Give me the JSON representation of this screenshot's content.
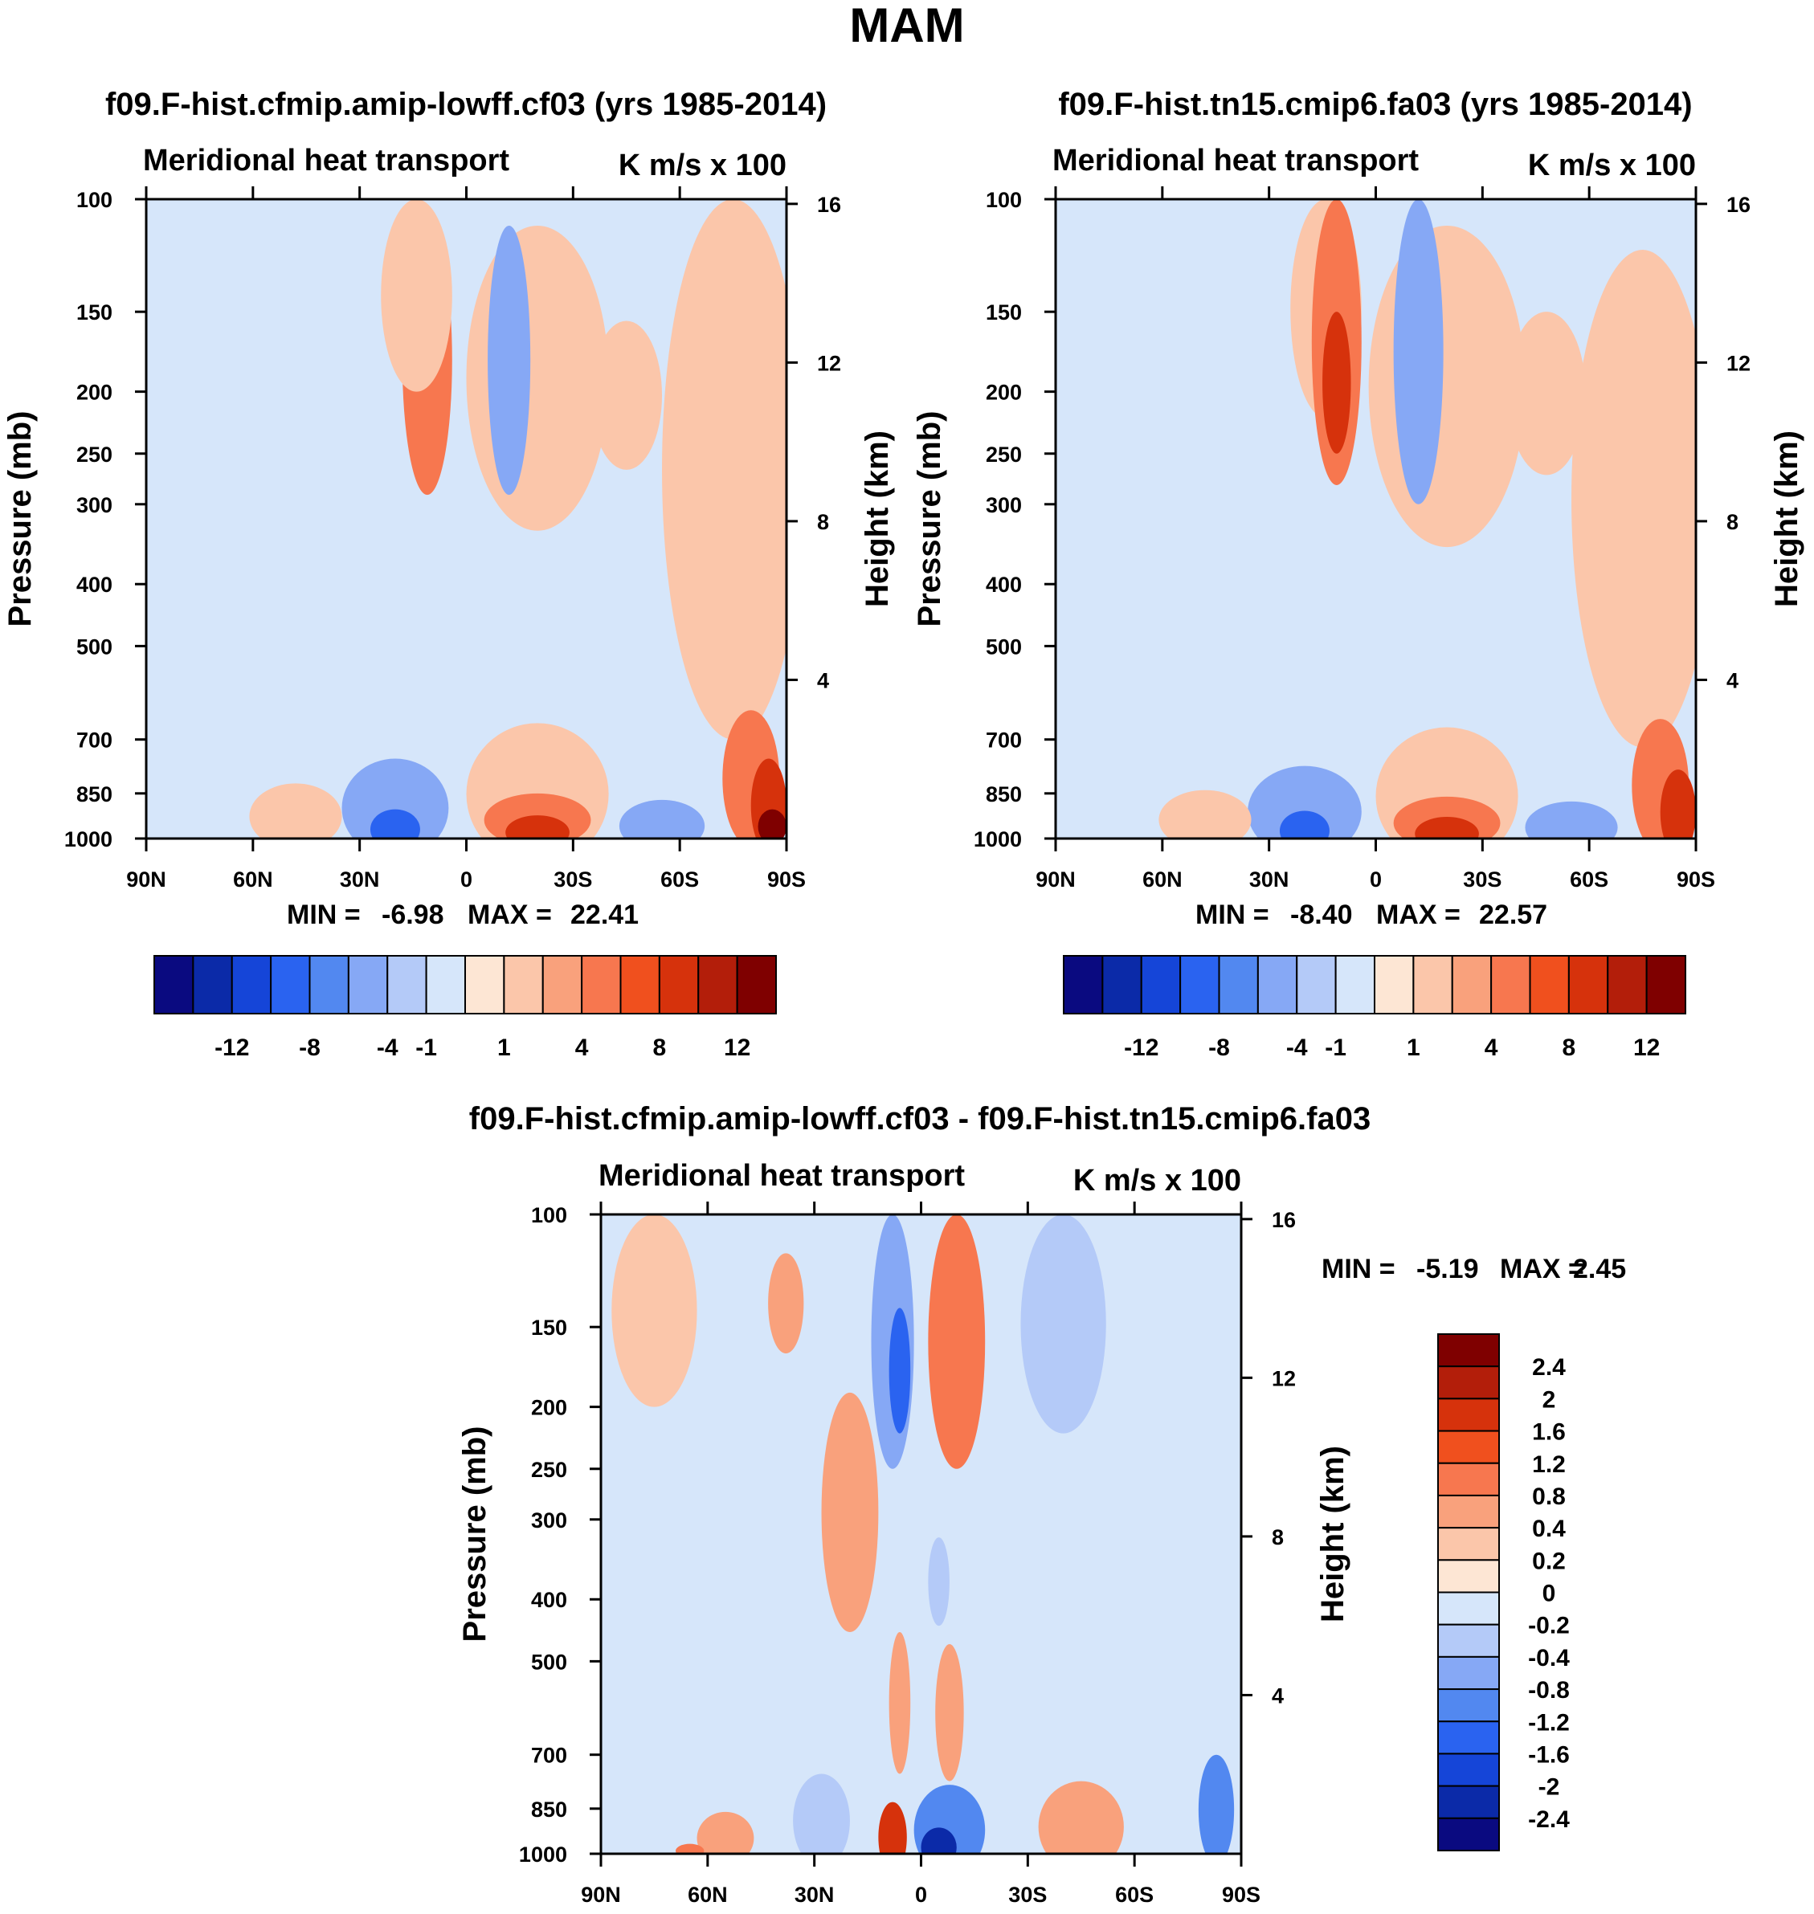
{
  "figure_title": "MAM",
  "chart_data": [
    {
      "type": "heatmap",
      "title": "f09.F-hist.cfmip.amip-lowff.cf03 (yrs 1985-2014)",
      "subtitle_left": "Meridional heat transport",
      "subtitle_right": "K m/s x 100",
      "ylabel": "Pressure (mb)",
      "ylabel_right": "Height (km)",
      "x_ticks": [
        "90N",
        "60N",
        "30N",
        "0",
        "30S",
        "60S",
        "90S"
      ],
      "y_ticks": [
        "100",
        "150",
        "200",
        "250",
        "300",
        "400",
        "500",
        "700",
        "850",
        "1000"
      ],
      "y_right_ticks": [
        "16",
        "12",
        "8",
        "4"
      ],
      "stats": {
        "min_label": "MIN =",
        "min": "-6.98",
        "max_label": "MAX =",
        "max": "22.41"
      },
      "features": [
        {
          "lat": 14,
          "p": 140,
          "rx": 10,
          "ry": 60,
          "v": 1
        },
        {
          "lat": -20,
          "p": 220,
          "rx": 20,
          "ry": 110,
          "v": 1
        },
        {
          "lat": 33,
          "p": 200,
          "rx": 5,
          "ry": 25,
          "v": -1
        },
        {
          "lat": 11,
          "p": 200,
          "rx": 7,
          "ry": 90,
          "v": 4
        },
        {
          "lat": -12,
          "p": 200,
          "rx": 6,
          "ry": 90,
          "v": -4
        },
        {
          "lat": -45,
          "p": 210,
          "rx": 10,
          "ry": 55,
          "v": 1
        },
        {
          "lat": -75,
          "p": 400,
          "rx": 20,
          "ry": 300,
          "v": 1
        },
        {
          "lat": 48,
          "p": 930,
          "rx": 13,
          "ry": 110,
          "v": 1
        },
        {
          "lat": 20,
          "p": 910,
          "rx": 15,
          "ry": 160,
          "v": -4
        },
        {
          "lat": 20,
          "p": 970,
          "rx": 7,
          "ry": 70,
          "v": -8
        },
        {
          "lat": -20,
          "p": 880,
          "rx": 20,
          "ry": 220,
          "v": 1
        },
        {
          "lat": -20,
          "p": 940,
          "rx": 15,
          "ry": 90,
          "v": 4
        },
        {
          "lat": -20,
          "p": 980,
          "rx": 9,
          "ry": 60,
          "v": 8
        },
        {
          "lat": -55,
          "p": 960,
          "rx": 12,
          "ry": 90,
          "v": -4
        },
        {
          "lat": -80,
          "p": 830,
          "rx": 8,
          "ry": 200,
          "v": 4
        },
        {
          "lat": -85,
          "p": 900,
          "rx": 5,
          "ry": 150,
          "v": 8
        },
        {
          "lat": -86,
          "p": 960,
          "rx": 4,
          "ry": 60,
          "v": 12
        }
      ]
    },
    {
      "type": "heatmap",
      "title": "f09.F-hist.tn15.cmip6.fa03 (yrs 1985-2014)",
      "subtitle_left": "Meridional heat transport",
      "subtitle_right": "K m/s x 100",
      "ylabel": "Pressure (mb)",
      "ylabel_right": "Height (km)",
      "x_ticks": [
        "90N",
        "60N",
        "30N",
        "0",
        "30S",
        "60S",
        "90S"
      ],
      "y_ticks": [
        "100",
        "150",
        "200",
        "250",
        "300",
        "400",
        "500",
        "700",
        "850",
        "1000"
      ],
      "y_right_ticks": [
        "16",
        "12",
        "8",
        "4"
      ],
      "stats": {
        "min_label": "MIN =",
        "min": "-8.40",
        "max_label": "MAX =",
        "max": "22.57"
      },
      "features": [
        {
          "lat": 14,
          "p": 150,
          "rx": 10,
          "ry": 70,
          "v": 1
        },
        {
          "lat": -20,
          "p": 230,
          "rx": 22,
          "ry": 120,
          "v": 1
        },
        {
          "lat": 35,
          "p": 200,
          "rx": 4,
          "ry": 25,
          "v": -1
        },
        {
          "lat": 11,
          "p": 190,
          "rx": 7,
          "ry": 90,
          "v": 4
        },
        {
          "lat": 11,
          "p": 200,
          "rx": 4,
          "ry": 50,
          "v": 8
        },
        {
          "lat": -12,
          "p": 200,
          "rx": 7,
          "ry": 100,
          "v": -4
        },
        {
          "lat": -48,
          "p": 210,
          "rx": 11,
          "ry": 60,
          "v": 1
        },
        {
          "lat": -75,
          "p": 420,
          "rx": 20,
          "ry": 300,
          "v": 1
        },
        {
          "lat": 48,
          "p": 940,
          "rx": 13,
          "ry": 100,
          "v": 1
        },
        {
          "lat": 20,
          "p": 920,
          "rx": 16,
          "ry": 150,
          "v": -4
        },
        {
          "lat": 20,
          "p": 975,
          "rx": 7,
          "ry": 70,
          "v": -8
        },
        {
          "lat": -20,
          "p": 890,
          "rx": 20,
          "ry": 220,
          "v": 1
        },
        {
          "lat": -20,
          "p": 950,
          "rx": 15,
          "ry": 90,
          "v": 4
        },
        {
          "lat": -20,
          "p": 985,
          "rx": 9,
          "ry": 60,
          "v": 8
        },
        {
          "lat": -55,
          "p": 965,
          "rx": 13,
          "ry": 90,
          "v": -4
        },
        {
          "lat": -80,
          "p": 850,
          "rx": 8,
          "ry": 200,
          "v": 4
        },
        {
          "lat": -85,
          "p": 920,
          "rx": 5,
          "ry": 140,
          "v": 8
        }
      ]
    },
    {
      "type": "heatmap",
      "title": "f09.F-hist.cfmip.amip-lowff.cf03 - f09.F-hist.tn15.cmip6.fa03",
      "subtitle_left": "Meridional heat transport",
      "subtitle_right": "K m/s x 100",
      "ylabel": "Pressure (mb)",
      "ylabel_right": "Height (km)",
      "x_ticks": [
        "90N",
        "60N",
        "30N",
        "0",
        "30S",
        "60S",
        "90S"
      ],
      "y_ticks": [
        "100",
        "150",
        "200",
        "250",
        "300",
        "400",
        "500",
        "700",
        "850",
        "1000"
      ],
      "y_right_ticks": [
        "16",
        "12",
        "8",
        "4"
      ],
      "stats": {
        "min_label": "MIN =",
        "min": "-5.19",
        "max_label": "MAX =",
        "max": "2.45"
      },
      "features": [
        {
          "lat": 75,
          "p": 150,
          "rx": 12,
          "ry": 50,
          "v": 0.2
        },
        {
          "lat": 38,
          "p": 140,
          "rx": 5,
          "ry": 25,
          "v": 0.4
        },
        {
          "lat": 20,
          "p": 320,
          "rx": 8,
          "ry": 130,
          "v": 0.4
        },
        {
          "lat": 8,
          "p": 170,
          "rx": 6,
          "ry": 80,
          "v": -0.8
        },
        {
          "lat": 6,
          "p": 180,
          "rx": 3,
          "ry": 40,
          "v": -1.6
        },
        {
          "lat": -10,
          "p": 170,
          "rx": 8,
          "ry": 80,
          "v": 0.8
        },
        {
          "lat": -40,
          "p": 160,
          "rx": 12,
          "ry": 60,
          "v": -0.4
        },
        {
          "lat": -5,
          "p": 380,
          "rx": 3,
          "ry": 60,
          "v": -0.4
        },
        {
          "lat": 6,
          "p": 600,
          "rx": 3,
          "ry": 150,
          "v": 0.4
        },
        {
          "lat": -8,
          "p": 620,
          "rx": 4,
          "ry": 150,
          "v": 0.4
        },
        {
          "lat": 55,
          "p": 950,
          "rx": 8,
          "ry": 90,
          "v": 0.4
        },
        {
          "lat": 65,
          "p": 990,
          "rx": 4,
          "ry": 25,
          "v": 0.8
        },
        {
          "lat": 28,
          "p": 900,
          "rx": 8,
          "ry": 150,
          "v": -0.4
        },
        {
          "lat": 8,
          "p": 950,
          "rx": 4,
          "ry": 120,
          "v": 1.6
        },
        {
          "lat": -8,
          "p": 930,
          "rx": 10,
          "ry": 150,
          "v": -1.2
        },
        {
          "lat": -5,
          "p": 980,
          "rx": 5,
          "ry": 70,
          "v": -2.4
        },
        {
          "lat": -45,
          "p": 920,
          "rx": 12,
          "ry": 150,
          "v": 0.4
        },
        {
          "lat": -83,
          "p": 870,
          "rx": 5,
          "ry": 170,
          "v": -1.2
        }
      ]
    }
  ],
  "colorbars": {
    "top": {
      "labels": [
        "-12",
        "-8",
        "-4",
        "-1",
        "1",
        "4",
        "8",
        "12"
      ]
    },
    "diff": {
      "labels": [
        "2.4",
        "2",
        "1.6",
        "1.2",
        "0.8",
        "0.4",
        "0.2",
        "0",
        "-0.2",
        "-0.4",
        "-0.8",
        "-1.2",
        "-1.6",
        "-2",
        "-2.4"
      ]
    }
  },
  "colors": {
    "palette": [
      "#0a0a80",
      "#0b2aa8",
      "#1545d8",
      "#2a63f0",
      "#5288f0",
      "#86a8f5",
      "#b4caf8",
      "#d6e6fa",
      "#fde6d4",
      "#fbc6aa",
      "#f9a17c",
      "#f7774f",
      "#f0501e",
      "#d6320c",
      "#b31e0a",
      "#7f0000"
    ]
  }
}
